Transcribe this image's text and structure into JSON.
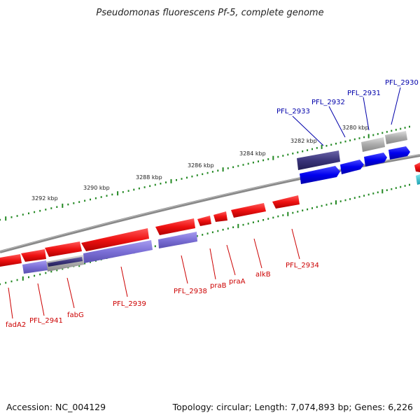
{
  "title": "Pseudomonas fluorescens Pf-5, complete genome",
  "footer": {
    "accession": "Accession: NC_004129",
    "topology": "Topology: circular; Length: 7,074,893 bp; Genes: 6,226"
  },
  "scale_labels": [
    "3280 kbp",
    "3282 kbp",
    "3284 kbp",
    "3286 kbp",
    "3288 kbp",
    "3290 kbp",
    "3292 kbp"
  ],
  "genes_top": [
    "PFL_2930",
    "PFL_2931",
    "PFL_2932",
    "PFL_2933"
  ],
  "genes_bottom": [
    "PFL_2934",
    "alkB",
    "praA",
    "praB",
    "PFL_2938",
    "PFL_2939",
    "fabG",
    "PFL_2941",
    "fadA2"
  ],
  "colors": {
    "forward_cds": "#0000ee",
    "reverse_cds": "#ee1111",
    "forward_label": "#0000aa",
    "reverse_label": "#cc0000",
    "pseudo": "#aaaaaa",
    "match_dark": "#3a347a",
    "match_light": "#7b6fd6",
    "other": "#22b8c8",
    "backbone": "#888888",
    "ticks": "#228822"
  }
}
